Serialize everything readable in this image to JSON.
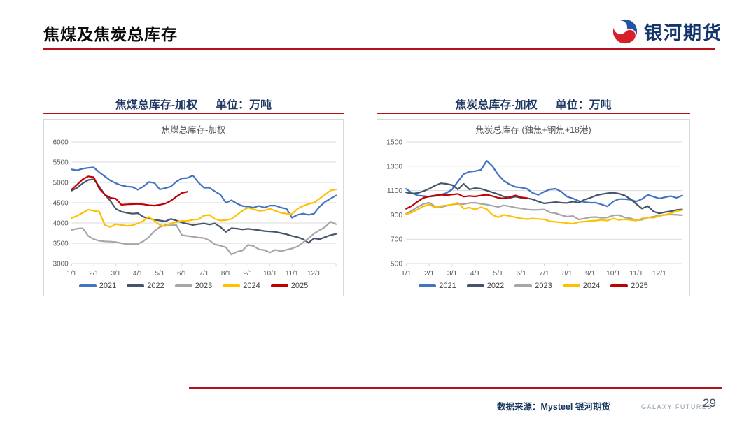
{
  "header": {
    "title": "焦煤及焦炭总库存",
    "logo_text": "银河期货"
  },
  "footer": {
    "source": "数据来源：Mysteel 银河期货",
    "brand": "GALAXY FUTURES",
    "page": "29"
  },
  "colors": {
    "accent_red": "#b41218",
    "section_title_blue": "#1f3864",
    "grid": "#d9d9d9",
    "axis_text": "#595959",
    "logo_blue": "#2453a4",
    "logo_red": "#d6212b"
  },
  "charts": [
    {
      "section_title": "焦煤总库存-加权",
      "unit_label": "单位：万吨",
      "chart_data": {
        "type": "line",
        "title": "焦煤总库存-加权",
        "x_tick_labels": [
          "1/1",
          "2/1",
          "3/1",
          "4/1",
          "5/1",
          "6/1",
          "7/1",
          "8/1",
          "9/1",
          "10/1",
          "11/1",
          "12/1"
        ],
        "x_domain": [
          0,
          12
        ],
        "points_per_month": 4,
        "ylim": [
          3000,
          6000
        ],
        "y_ticks": [
          3000,
          3500,
          4000,
          4500,
          5000,
          5500,
          6000
        ],
        "grid": "horizontal",
        "legend_position": "bottom",
        "series": [
          {
            "name": "2021",
            "color": "#4472c4",
            "values": [
              5320,
              5300,
              5340,
              5360,
              5370,
              5250,
              5150,
              5050,
              4980,
              4930,
              4900,
              4890,
              4820,
              4900,
              5010,
              4990,
              4830,
              4860,
              4900,
              5020,
              5100,
              5110,
              5170,
              5000,
              4870,
              4870,
              4780,
              4700,
              4500,
              4560,
              4480,
              4420,
              4400,
              4380,
              4420,
              4380,
              4430,
              4430,
              4380,
              4350,
              4130,
              4200,
              4230,
              4200,
              4230,
              4400,
              4520,
              4600,
              4680
            ]
          },
          {
            "name": "2022",
            "color": "#44546a",
            "values": [
              4800,
              4870,
              4980,
              5060,
              5080,
              4900,
              4700,
              4550,
              4350,
              4280,
              4250,
              4230,
              4240,
              4150,
              4110,
              4080,
              4060,
              4040,
              4100,
              4060,
              4010,
              3980,
              3950,
              3970,
              3990,
              3960,
              3990,
              3900,
              3780,
              3870,
              3860,
              3840,
              3855,
              3840,
              3820,
              3800,
              3790,
              3780,
              3750,
              3720,
              3680,
              3650,
              3600,
              3510,
              3620,
              3600,
              3650,
              3700,
              3730
            ]
          },
          {
            "name": "2023",
            "color": "#a6a6a6",
            "values": [
              3830,
              3860,
              3870,
              3680,
              3600,
              3560,
              3545,
              3540,
              3530,
              3500,
              3480,
              3475,
              3480,
              3550,
              3650,
              3800,
              3900,
              3950,
              3940,
              3950,
              3700,
              3680,
              3660,
              3640,
              3630,
              3570,
              3470,
              3440,
              3400,
              3220,
              3290,
              3320,
              3460,
              3430,
              3350,
              3330,
              3270,
              3340,
              3300,
              3340,
              3370,
              3420,
              3520,
              3620,
              3740,
              3820,
              3900,
              4030,
              3970
            ]
          },
          {
            "name": "2024",
            "color": "#ffc000",
            "values": [
              4120,
              4180,
              4250,
              4330,
              4300,
              4280,
              3950,
              3900,
              3970,
              3950,
              3930,
              3940,
              3990,
              4050,
              4150,
              4050,
              3950,
              3920,
              3990,
              4020,
              4050,
              4050,
              4080,
              4090,
              4180,
              4200,
              4100,
              4060,
              4070,
              4100,
              4200,
              4300,
              4380,
              4340,
              4300,
              4310,
              4350,
              4300,
              4250,
              4230,
              4220,
              4350,
              4420,
              4470,
              4500,
              4600,
              4700,
              4800,
              4830
            ]
          },
          {
            "name": "2025",
            "color": "#c00000",
            "values": [
              4830,
              4950,
              5080,
              5150,
              5130,
              4850,
              4700,
              4620,
              4600,
              4450,
              4460,
              4465,
              4470,
              4460,
              4440,
              4430,
              4450,
              4480,
              4550,
              4650,
              4740,
              4770
            ]
          }
        ]
      }
    },
    {
      "section_title": "焦炭总库存-加权",
      "unit_label": "单位：万吨",
      "chart_data": {
        "type": "line",
        "title": "焦炭总库存 (独焦+钢焦+18港)",
        "x_tick_labels": [
          "1/1",
          "2/1",
          "3/1",
          "4/1",
          "5/1",
          "6/1",
          "7/1",
          "8/1",
          "9/1",
          "10/1",
          "11/1",
          "12/1"
        ],
        "x_domain": [
          0,
          12
        ],
        "points_per_month": 4,
        "ylim": [
          500,
          1500
        ],
        "y_ticks": [
          500,
          700,
          900,
          1100,
          1300,
          1500
        ],
        "grid": "horizontal",
        "legend_position": "bottom",
        "series": [
          {
            "name": "2021",
            "color": "#4472c4",
            "values": [
              1115,
              1080,
              1060,
              1055,
              1050,
              1055,
              1065,
              1080,
              1110,
              1175,
              1235,
              1255,
              1260,
              1270,
              1345,
              1300,
              1230,
              1180,
              1150,
              1130,
              1125,
              1115,
              1080,
              1065,
              1090,
              1110,
              1115,
              1090,
              1050,
              1035,
              1015,
              1005,
              1000,
              1000,
              985,
              970,
              1010,
              1030,
              1030,
              1025,
              1010,
              1030,
              1065,
              1050,
              1035,
              1045,
              1055,
              1040,
              1060
            ]
          },
          {
            "name": "2022",
            "color": "#44546a",
            "values": [
              1085,
              1075,
              1080,
              1095,
              1115,
              1140,
              1160,
              1155,
              1145,
              1110,
              1155,
              1110,
              1120,
              1115,
              1100,
              1085,
              1070,
              1050,
              1040,
              1050,
              1040,
              1038,
              1028,
              1010,
              995,
              1000,
              1005,
              1000,
              998,
              1010,
              1000,
              1025,
              1040,
              1060,
              1070,
              1078,
              1082,
              1075,
              1060,
              1030,
              990,
              952,
              973,
              928,
              912,
              922,
              930,
              940,
              945
            ]
          },
          {
            "name": "2023",
            "color": "#a6a6a6",
            "values": [
              910,
              935,
              965,
              990,
              1000,
              970,
              962,
              975,
              985,
              990,
              988,
              998,
              1000,
              990,
              985,
              975,
              965,
              978,
              970,
              960,
              953,
              945,
              940,
              942,
              945,
              920,
              913,
              897,
              885,
              890,
              862,
              870,
              880,
              882,
              875,
              878,
              895,
              898,
              878,
              872,
              857,
              860,
              877,
              885,
              895,
              900,
              903,
              900,
              897
            ]
          },
          {
            "name": "2024",
            "color": "#ffc000",
            "values": [
              905,
              920,
              945,
              970,
              985,
              962,
              972,
              978,
              985,
              1000,
              952,
              960,
              945,
              963,
              948,
              900,
              880,
              900,
              890,
              880,
              870,
              865,
              870,
              866,
              863,
              847,
              842,
              838,
              832,
              827,
              840,
              845,
              850,
              853,
              858,
              853,
              870,
              858,
              863,
              858,
              853,
              870,
              880,
              876,
              890,
              900,
              913,
              930,
              940
            ]
          },
          {
            "name": "2025",
            "color": "#c00000",
            "values": [
              950,
              975,
              1010,
              1040,
              1052,
              1060,
              1066,
              1062,
              1067,
              1073,
              1050,
              1056,
              1052,
              1060,
              1066,
              1055,
              1040,
              1035,
              1046,
              1060,
              1045,
              1038
            ]
          }
        ]
      }
    }
  ]
}
